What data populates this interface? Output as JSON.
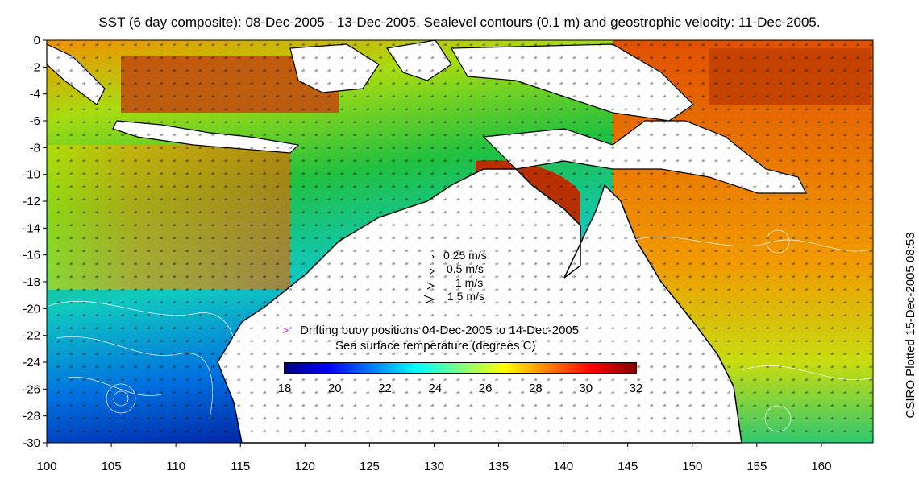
{
  "title": "SST (6 day composite): 08-Dec-2005 - 13-Dec-2005. Sealevel contours (0.1 m) and geostrophic velocity: 11-Dec-2005.",
  "side_label": "CSIRO Plotted 15-Dec-2005 08:53",
  "map": {
    "lon_range": [
      100,
      164
    ],
    "lat_range": [
      -30,
      0
    ],
    "x_ticks": [
      "100",
      "105",
      "110",
      "115",
      "120",
      "125",
      "130",
      "135",
      "140",
      "145",
      "150",
      "155",
      "160"
    ],
    "y_ticks": [
      "0",
      "-2",
      "-4",
      "-6",
      "-8",
      "-10",
      "-12",
      "-14",
      "-16",
      "-18",
      "-20",
      "-22",
      "-24",
      "-26",
      "-28",
      "-30"
    ]
  },
  "velocity_key": [
    {
      "label": "0.25 m/s",
      "speed": 0.25
    },
    {
      "label": "0.5 m/s",
      "speed": 0.5
    },
    {
      "label": "1 m/s",
      "speed": 1
    },
    {
      "label": "1.5 m/s",
      "speed": 1.5
    }
  ],
  "buoy_legend": {
    "marker": ">",
    "text": "Drifting buoy positions 04-Dec-2005 to 14-Dec-2005",
    "color": "#d620d6"
  },
  "colorbar": {
    "title": "Sea surface temperature (degrees C)",
    "range": [
      18,
      32
    ],
    "ticks": [
      "18",
      "20",
      "22",
      "24",
      "26",
      "28",
      "30",
      "32"
    ],
    "colors": [
      "#00007f",
      "#0000ff",
      "#007fff",
      "#00ffff",
      "#7fff7f",
      "#ffff00",
      "#ff7f00",
      "#ff0000",
      "#7f0000"
    ]
  },
  "land_color": "#ffffff",
  "coast_color": "#000000"
}
